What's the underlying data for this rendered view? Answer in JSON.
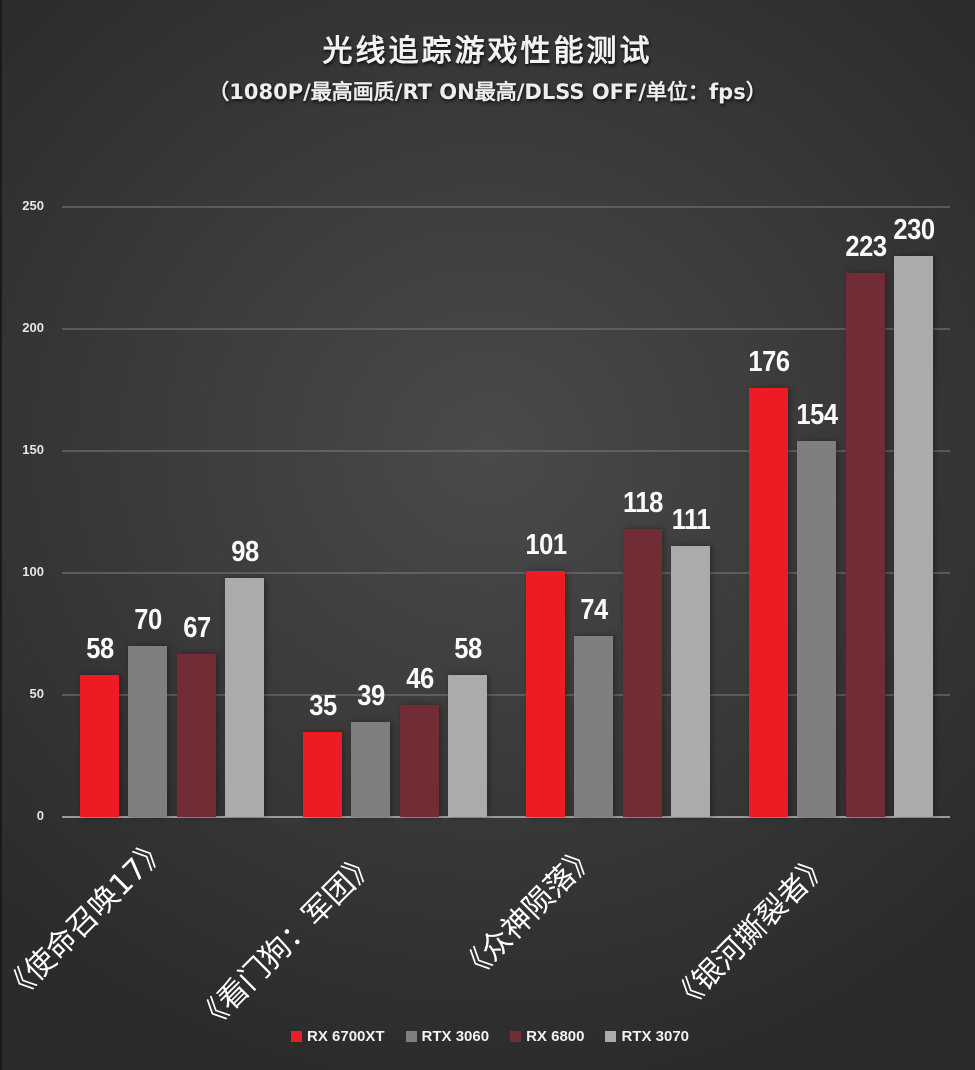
{
  "chart_data": {
    "type": "bar",
    "title": "光线追踪游戏性能测试",
    "subtitle": "（1080P/最高画质/RT ON最高/DLSS OFF/单位：fps）",
    "xlabel": "",
    "ylabel": "fps",
    "ylim": [
      0,
      250
    ],
    "yticks": [
      "0",
      "50",
      "100",
      "150",
      "200",
      "250"
    ],
    "grid": true,
    "legend_position": "bottom",
    "categories": [
      "《使命召唤17》",
      "《看门狗：军团》",
      "《众神陨落》",
      "《银河撕裂者》"
    ],
    "series": [
      {
        "name": "RX 6700XT",
        "color": "#ed1c24",
        "values": [
          58,
          35,
          101,
          176
        ]
      },
      {
        "name": "RTX 3060",
        "color": "#7f7f7f",
        "values": [
          70,
          39,
          74,
          154
        ]
      },
      {
        "name": "RX 6800",
        "color": "#712d33",
        "values": [
          67,
          46,
          118,
          223
        ]
      },
      {
        "name": "RTX 3070",
        "color": "#ababab",
        "values": [
          98,
          58,
          111,
          230
        ]
      }
    ]
  }
}
